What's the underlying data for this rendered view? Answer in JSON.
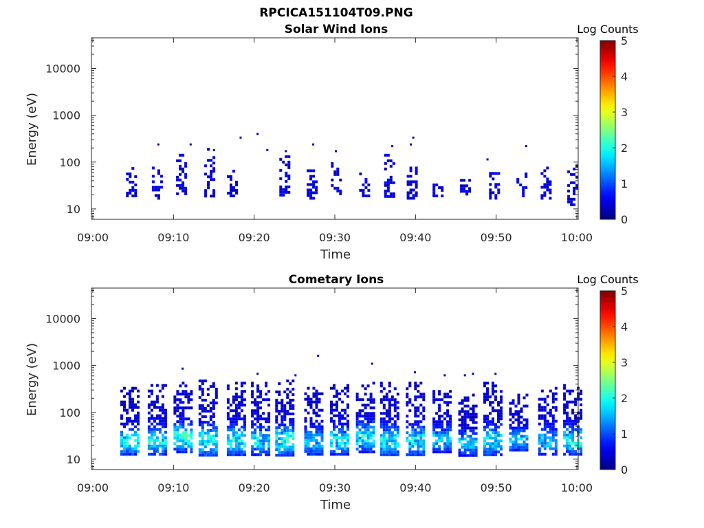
{
  "figure": {
    "filename": "RPCICA151104T09.PNG"
  },
  "chart_data": [
    {
      "type": "heatmap",
      "title": "Solar Wind Ions",
      "xlabel": "Time",
      "ylabel": "Energy (eV)",
      "x_ticks": [
        "09:00",
        "09:10",
        "09:20",
        "09:30",
        "09:40",
        "09:50",
        "10:00"
      ],
      "x_range": [
        "09:00",
        "10:00"
      ],
      "y_scale": "log",
      "y_ticks": [
        "10",
        "100",
        "1000",
        "10000"
      ],
      "y_range": [
        6,
        45000
      ],
      "colorbar": {
        "label": "Log Counts",
        "range": [
          0,
          5
        ],
        "ticks": [
          "0",
          "1",
          "2",
          "3",
          "4",
          "5"
        ],
        "colormap": "jet"
      },
      "bursts": [
        {
          "t_min": 4.8,
          "e_lo": 18,
          "e_hi": 90,
          "level": 0.3
        },
        {
          "t_min": 8.0,
          "e_lo": 18,
          "e_hi": 80,
          "level": 0.3
        },
        {
          "t_min": 11.0,
          "e_lo": 20,
          "e_hi": 150,
          "level": 0.3
        },
        {
          "t_min": 14.5,
          "e_lo": 18,
          "e_hi": 200,
          "level": 0.3
        },
        {
          "t_min": 17.3,
          "e_lo": 18,
          "e_hi": 90,
          "level": 0.3
        },
        {
          "t_min": 23.8,
          "e_lo": 20,
          "e_hi": 140,
          "level": 0.3
        },
        {
          "t_min": 27.2,
          "e_lo": 18,
          "e_hi": 80,
          "level": 0.3
        },
        {
          "t_min": 30.2,
          "e_lo": 18,
          "e_hi": 100,
          "level": 0.3
        },
        {
          "t_min": 33.7,
          "e_lo": 20,
          "e_hi": 60,
          "level": 0.3
        },
        {
          "t_min": 36.8,
          "e_lo": 18,
          "e_hi": 150,
          "level": 0.3
        },
        {
          "t_min": 39.6,
          "e_lo": 18,
          "e_hi": 80,
          "level": 0.3
        },
        {
          "t_min": 42.8,
          "e_lo": 18,
          "e_hi": 40,
          "level": 0.3
        },
        {
          "t_min": 46.2,
          "e_lo": 18,
          "e_hi": 50,
          "level": 0.3
        },
        {
          "t_min": 49.8,
          "e_lo": 18,
          "e_hi": 70,
          "level": 0.3
        },
        {
          "t_min": 53.2,
          "e_lo": 18,
          "e_hi": 60,
          "level": 0.3
        },
        {
          "t_min": 56.2,
          "e_lo": 18,
          "e_hi": 80,
          "level": 0.3
        },
        {
          "t_min": 59.5,
          "e_lo": 12,
          "e_hi": 100,
          "level": 0.3
        }
      ],
      "isolated_points": [
        {
          "t_min": 8.0,
          "e": 250
        },
        {
          "t_min": 12.0,
          "e": 250
        },
        {
          "t_min": 14.9,
          "e": 190
        },
        {
          "t_min": 18.2,
          "e": 350
        },
        {
          "t_min": 20.3,
          "e": 420
        },
        {
          "t_min": 21.5,
          "e": 190
        },
        {
          "t_min": 23.8,
          "e": 180
        },
        {
          "t_min": 27.2,
          "e": 250
        },
        {
          "t_min": 30.0,
          "e": 180
        },
        {
          "t_min": 37.0,
          "e": 230
        },
        {
          "t_min": 39.6,
          "e": 350
        },
        {
          "t_min": 39.3,
          "e": 250
        },
        {
          "t_min": 48.8,
          "e": 120
        },
        {
          "t_min": 53.6,
          "e": 230
        }
      ]
    },
    {
      "type": "heatmap",
      "title": "Cometary Ions",
      "xlabel": "Time",
      "ylabel": "Energy (eV)",
      "x_ticks": [
        "09:00",
        "09:10",
        "09:20",
        "09:30",
        "09:40",
        "09:50",
        "10:00"
      ],
      "x_range": [
        "09:00",
        "10:00"
      ],
      "y_scale": "log",
      "y_ticks": [
        "10",
        "100",
        "1000",
        "10000"
      ],
      "y_range": [
        6,
        45000
      ],
      "colorbar": {
        "label": "Log Counts",
        "range": [
          0,
          5
        ],
        "ticks": [
          "0",
          "1",
          "2",
          "3",
          "4",
          "5"
        ],
        "colormap": "jet"
      },
      "bursts": [
        {
          "t_min": 4.6,
          "e_lo": 12,
          "e_hi": 350,
          "level": 1.6
        },
        {
          "t_min": 8.0,
          "e_lo": 12,
          "e_hi": 400,
          "level": 1.5
        },
        {
          "t_min": 11.2,
          "e_lo": 15,
          "e_hi": 450,
          "level": 1.8
        },
        {
          "t_min": 14.3,
          "e_lo": 12,
          "e_hi": 500,
          "level": 1.6
        },
        {
          "t_min": 17.8,
          "e_lo": 12,
          "e_hi": 450,
          "level": 1.6
        },
        {
          "t_min": 20.8,
          "e_lo": 12,
          "e_hi": 450,
          "level": 1.3
        },
        {
          "t_min": 23.8,
          "e_lo": 12,
          "e_hi": 500,
          "level": 1.7
        },
        {
          "t_min": 27.4,
          "e_lo": 12,
          "e_hi": 350,
          "level": 1.3
        },
        {
          "t_min": 30.6,
          "e_lo": 12,
          "e_hi": 400,
          "level": 1.5
        },
        {
          "t_min": 33.8,
          "e_lo": 15,
          "e_hi": 450,
          "level": 1.6
        },
        {
          "t_min": 36.8,
          "e_lo": 12,
          "e_hi": 450,
          "level": 1.6
        },
        {
          "t_min": 40.0,
          "e_lo": 12,
          "e_hi": 450,
          "level": 1.5
        },
        {
          "t_min": 43.3,
          "e_lo": 15,
          "e_hi": 300,
          "level": 1.3
        },
        {
          "t_min": 46.5,
          "e_lo": 12,
          "e_hi": 250,
          "level": 1.2
        },
        {
          "t_min": 49.6,
          "e_lo": 12,
          "e_hi": 450,
          "level": 1.5
        },
        {
          "t_min": 52.8,
          "e_lo": 15,
          "e_hi": 250,
          "level": 1.3
        },
        {
          "t_min": 56.4,
          "e_lo": 12,
          "e_hi": 350,
          "level": 1.3
        },
        {
          "t_min": 59.5,
          "e_lo": 12,
          "e_hi": 400,
          "level": 1.6
        }
      ],
      "isolated_points": [
        {
          "t_min": 11.0,
          "e": 900
        },
        {
          "t_min": 20.3,
          "e": 700
        },
        {
          "t_min": 25.0,
          "e": 650
        },
        {
          "t_min": 27.8,
          "e": 1700
        },
        {
          "t_min": 34.5,
          "e": 1150
        },
        {
          "t_min": 39.8,
          "e": 750
        },
        {
          "t_min": 43.5,
          "e": 650
        },
        {
          "t_min": 46.0,
          "e": 650
        },
        {
          "t_min": 47.0,
          "e": 700
        },
        {
          "t_min": 49.8,
          "e": 700
        }
      ]
    }
  ]
}
